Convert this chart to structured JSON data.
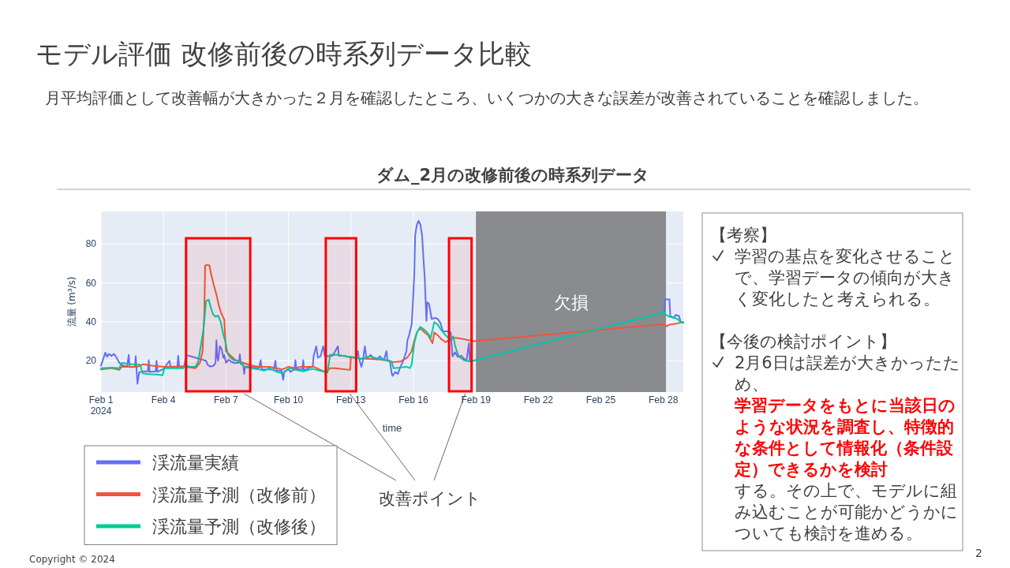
{
  "chart_data": [
    {
      "type": "line",
      "title": "ダム_2月の改修前後の時系列データ",
      "xlabel": "time",
      "ylabel": "流量 (m³/s)",
      "xlim": [
        "2024-02-01T00:00",
        "2024-02-28T23:00"
      ],
      "ylim": [
        3.9,
        96.7
      ],
      "xticks": [
        {
          "value": "2024-02-01",
          "label": "Feb 1\n2024"
        },
        {
          "value": "2024-02-04",
          "label": "Feb 4"
        },
        {
          "value": "2024-02-07",
          "label": "Feb 7"
        },
        {
          "value": "2024-02-10",
          "label": "Feb 10"
        },
        {
          "value": "2024-02-13",
          "label": "Feb 13"
        },
        {
          "value": "2024-02-16",
          "label": "Feb 16"
        },
        {
          "value": "2024-02-19",
          "label": "Feb 19"
        },
        {
          "value": "2024-02-22",
          "label": "Feb 22"
        },
        {
          "value": "2024-02-25",
          "label": "Feb 25"
        },
        {
          "value": "2024-02-28",
          "label": "Feb 28"
        }
      ],
      "yticks": [
        20,
        40,
        60,
        80
      ],
      "grid": true,
      "legend": "bottom left",
      "series": [
        {
          "name": "渓流量実績",
          "color": "#636efa",
          "x": [
            "2024-02-01T00:00",
            "2024-02-01T03:00",
            "2024-02-01T05:00",
            "2024-02-01T07:00",
            "2024-02-01T09:00",
            "2024-02-01T12:00",
            "2024-02-01T15:00",
            "2024-02-01T18:00",
            "2024-02-01T21:00",
            "2024-02-02T00:00",
            "2024-02-02T06:00",
            "2024-02-02T08:00",
            "2024-02-02T09:00",
            "2024-02-02T15:00",
            "2024-02-02T16:00",
            "2024-02-02T18:00",
            "2024-02-02T20:00",
            "2024-02-03T00:00",
            "2024-02-03T06:00",
            "2024-02-03T07:00",
            "2024-02-03T08:00",
            "2024-02-03T15:00",
            "2024-02-03T16:00",
            "2024-02-03T17:00",
            "2024-02-04T00:00",
            "2024-02-04T07:00",
            "2024-02-04T08:00",
            "2024-02-04T16:00",
            "2024-02-04T17:00",
            "2024-02-04T18:00",
            "2024-02-05T00:00",
            "2024-02-05T02:00",
            "2024-02-05T23:00",
            "2024-02-06T01:00",
            "2024-02-06T03:00",
            "2024-02-06T06:00",
            "2024-02-06T10:00",
            "2024-02-06T12:00",
            "2024-02-06T13:00",
            "2024-02-06T14:00",
            "2024-02-06T15:00",
            "2024-02-06T17:00",
            "2024-02-06T19:00",
            "2024-02-06T21:00",
            "2024-02-06T22:00",
            "2024-02-07T00:00",
            "2024-02-07T03:00",
            "2024-02-07T06:00",
            "2024-02-07T10:00",
            "2024-02-07T15:00",
            "2024-02-07T16:00",
            "2024-02-07T17:00",
            "2024-02-07T20:00",
            "2024-02-07T21:00",
            "2024-02-07T22:00",
            "2024-02-08T03:00",
            "2024-02-08T09:00",
            "2024-02-08T14:00",
            "2024-02-08T16:00",
            "2024-02-08T17:00",
            "2024-02-08T23:00",
            "2024-02-09T07:00",
            "2024-02-09T09:00",
            "2024-02-09T10:00",
            "2024-02-09T16:00",
            "2024-02-09T18:00",
            "2024-02-09T19:00",
            "2024-02-10T00:00",
            "2024-02-10T02:00",
            "2024-02-10T07:00",
            "2024-02-10T08:00",
            "2024-02-10T09:00",
            "2024-02-10T16:00",
            "2024-02-10T17:00",
            "2024-02-10T18:00",
            "2024-02-10T23:00",
            "2024-02-11T04:00",
            "2024-02-11T05:00",
            "2024-02-11T08:00",
            "2024-02-11T10:00",
            "2024-02-11T13:00",
            "2024-02-11T16:00",
            "2024-02-11T18:00",
            "2024-02-11T22:00",
            "2024-02-12T03:00",
            "2024-02-12T09:00",
            "2024-02-12T10:00",
            "2024-02-12T18:00",
            "2024-02-13T00:00",
            "2024-02-13T06:00",
            "2024-02-13T08:00",
            "2024-02-13T09:00",
            "2024-02-13T12:00",
            "2024-02-13T14:00",
            "2024-02-13T16:00",
            "2024-02-13T18:00",
            "2024-02-13T23:00",
            "2024-02-14T02:00",
            "2024-02-14T06:00",
            "2024-02-14T09:00",
            "2024-02-14T14:00",
            "2024-02-14T17:00",
            "2024-02-14T18:00",
            "2024-02-14T21:00",
            "2024-02-14T23:00",
            "2024-02-15T00:00",
            "2024-02-15T03:00",
            "2024-02-15T06:00",
            "2024-02-15T09:00",
            "2024-02-15T12:00",
            "2024-02-15T14:00",
            "2024-02-15T16:00",
            "2024-02-15T17:00",
            "2024-02-15T19:00",
            "2024-02-15T20:00",
            "2024-02-15T22:00",
            "2024-02-15T23:00",
            "2024-02-16T01:00",
            "2024-02-16T02:00",
            "2024-02-16T04:00",
            "2024-02-16T06:00",
            "2024-02-16T08:00",
            "2024-02-16T10:00",
            "2024-02-16T11:00",
            "2024-02-16T13:00",
            "2024-02-16T15:00",
            "2024-02-16T16:00",
            "2024-02-16T18:00",
            "2024-02-16T21:00",
            "2024-02-17T01:00",
            "2024-02-17T04:00",
            "2024-02-17T07:00",
            "2024-02-17T10:00",
            "2024-02-17T17:00",
            "2024-02-17T19:00",
            "2024-02-17T21:00",
            "2024-02-18T00:00",
            "2024-02-18T03:00",
            "2024-02-18T07:00",
            "2024-02-18T10:00",
            "2024-02-18T13:00",
            "2024-02-18T16:00",
            "2024-02-18T17:00",
            "2024-02-18T21:00",
            "2024-02-28T01:00",
            "2024-02-28T02:00",
            "2024-02-28T07:00",
            "2024-02-28T08:00",
            "2024-02-28T12:00",
            "2024-02-28T14:00",
            "2024-02-28T18:00",
            "2024-02-28T20:00",
            "2024-02-28T23:00"
          ],
          "values": [
            17.5,
            21.5,
            24.2,
            22.0,
            23.5,
            22.5,
            23.5,
            21.5,
            19.0,
            17.8,
            17.0,
            23.0,
            16.8,
            16.8,
            22.3,
            8.2,
            14.0,
            14.5,
            14.5,
            20.3,
            14.2,
            14.5,
            20.0,
            14.3,
            15.8,
            20.0,
            17.0,
            17.0,
            22.5,
            17.0,
            17.3,
            23.0,
            20.2,
            20.0,
            17.8,
            17.0,
            17.5,
            19.0,
            30.5,
            22.0,
            20.0,
            27.5,
            26.0,
            21.5,
            23.0,
            19.0,
            20.5,
            19.5,
            18.8,
            19.0,
            23.3,
            18.5,
            17.5,
            13.3,
            17.0,
            17.0,
            16.5,
            16.2,
            20.3,
            15.7,
            15.5,
            15.4,
            20.0,
            15.0,
            14.8,
            10.2,
            14.3,
            15.8,
            14.3,
            15.5,
            20.3,
            15.8,
            15.5,
            20.3,
            15.0,
            16.2,
            16.9,
            22.3,
            27.4,
            21.6,
            22.3,
            27.4,
            22.3,
            22.3,
            22.6,
            27.4,
            22.6,
            22.3,
            21.6,
            21.6,
            25.0,
            21.6,
            16.9,
            20.5,
            27.4,
            21.0,
            23.0,
            21.0,
            20.7,
            22.3,
            20.3,
            25.0,
            20.3,
            19.6,
            13.5,
            12.2,
            14.2,
            13.2,
            16.9,
            19.6,
            22.3,
            25.0,
            30.4,
            33.1,
            35.1,
            38.5,
            46.6,
            64.2,
            84.5,
            89.9,
            91.9,
            89.9,
            84.5,
            76.4,
            62.8,
            40.5,
            50.0,
            49.3,
            41.5,
            42.0,
            41.5,
            39.5,
            35.1,
            35.1,
            34.5,
            22.3,
            24.3,
            22.0,
            22.6,
            21.2,
            19.9,
            29.0,
            19.6,
            20.0,
            44.9,
            51.5,
            51.5,
            43.0,
            42.0,
            43.5,
            43.0,
            40.0,
            39.5
          ]
        },
        {
          "name": "渓流量予測（改修前）",
          "color": "#ef553b",
          "x": [
            "2024-02-01T00:00",
            "2024-02-01T12:00",
            "2024-02-01T21:00",
            "2024-02-02T00:00",
            "2024-02-02T18:00",
            "2024-02-03T01:00",
            "2024-02-03T10:00",
            "2024-02-04T01:00",
            "2024-02-04T13:00",
            "2024-02-05T01:00",
            "2024-02-05T13:00",
            "2024-02-05T18:00",
            "2024-02-05T21:00",
            "2024-02-05T23:00",
            "2024-02-06T00:00",
            "2024-02-06T03:00",
            "2024-02-06T05:00",
            "2024-02-06T07:00",
            "2024-02-06T10:00",
            "2024-02-06T13:00",
            "2024-02-06T16:00",
            "2024-02-06T19:00",
            "2024-02-06T22:00",
            "2024-02-07T00:00",
            "2024-02-07T06:00",
            "2024-02-07T11:00",
            "2024-02-07T20:00",
            "2024-02-08T05:00",
            "2024-02-08T14:00",
            "2024-02-09T02:00",
            "2024-02-09T11:00",
            "2024-02-09T17:00",
            "2024-02-10T00:00",
            "2024-02-10T08:00",
            "2024-02-10T14:00",
            "2024-02-10T23:00",
            "2024-02-11T05:00",
            "2024-02-11T12:00",
            "2024-02-11T19:00",
            "2024-02-12T00:00",
            "2024-02-12T06:00",
            "2024-02-12T23:00",
            "2024-02-13T00:00",
            "2024-02-13T09:00",
            "2024-02-13T18:00",
            "2024-02-14T06:00",
            "2024-02-14T15:00",
            "2024-02-15T00:00",
            "2024-02-15T09:00",
            "2024-02-15T17:00",
            "2024-02-15T22:00",
            "2024-02-16T01:00",
            "2024-02-16T04:00",
            "2024-02-16T07:00",
            "2024-02-16T10:00",
            "2024-02-16T13:00",
            "2024-02-16T17:00",
            "2024-02-16T22:00",
            "2024-02-17T00:00",
            "2024-02-17T04:00",
            "2024-02-17T08:00",
            "2024-02-17T13:00",
            "2024-02-17T19:00",
            "2024-02-18T01:00",
            "2024-02-18T10:00",
            "2024-02-18T21:00",
            "2024-02-28T01:00",
            "2024-02-28T03:00",
            "2024-02-28T07:00",
            "2024-02-28T16:00",
            "2024-02-28T23:00"
          ],
          "values": [
            15.5,
            16.2,
            15.3,
            16.9,
            16.9,
            18.2,
            17.5,
            16.9,
            16.9,
            16.9,
            16.2,
            18.9,
            25.0,
            43.9,
            68.9,
            69.3,
            68.9,
            64.2,
            58.8,
            54.0,
            48.0,
            43.9,
            41.2,
            25.0,
            22.3,
            20.3,
            18.9,
            17.6,
            16.9,
            16.9,
            16.2,
            15.5,
            16.9,
            16.2,
            16.9,
            16.9,
            16.9,
            15.5,
            14.2,
            16.2,
            16.2,
            15.3,
            22.0,
            21.2,
            21.0,
            20.7,
            20.3,
            19.3,
            19.6,
            21.6,
            25.0,
            30.4,
            34.5,
            36.5,
            35.8,
            34.5,
            33.1,
            29.0,
            34.5,
            33.1,
            31.1,
            29.6,
            31.1,
            31.8,
            31.1,
            30.0,
            38.8,
            37.6,
            38.5,
            39.2,
            39.9
          ]
        },
        {
          "name": "渓流量予測（改修後）",
          "color": "#00cc96",
          "x": [
            "2024-02-01T00:00",
            "2024-02-01T12:00",
            "2024-02-01T21:00",
            "2024-02-02T00:00",
            "2024-02-02T12:00",
            "2024-02-02T21:00",
            "2024-02-03T00:00",
            "2024-02-03T07:00",
            "2024-02-03T19:00",
            "2024-02-03T23:00",
            "2024-02-04T01:00",
            "2024-02-04T13:00",
            "2024-02-04T23:00",
            "2024-02-05T01:00",
            "2024-02-05T07:00",
            "2024-02-05T13:00",
            "2024-02-05T16:00",
            "2024-02-05T19:00",
            "2024-02-05T22:00",
            "2024-02-06T00:00",
            "2024-02-06T01:00",
            "2024-02-06T04:00",
            "2024-02-06T07:00",
            "2024-02-06T09:00",
            "2024-02-06T12:00",
            "2024-02-06T15:00",
            "2024-02-06T18:00",
            "2024-02-06T21:00",
            "2024-02-06T23:00",
            "2024-02-07T02:00",
            "2024-02-07T05:00",
            "2024-02-07T09:00",
            "2024-02-07T17:00",
            "2024-02-07T21:00",
            "2024-02-08T05:00",
            "2024-02-08T14:00",
            "2024-02-08T20:00",
            "2024-02-09T02:00",
            "2024-02-09T11:00",
            "2024-02-09T17:00",
            "2024-02-10T02:00",
            "2024-02-10T08:00",
            "2024-02-10T17:00",
            "2024-02-10T23:00",
            "2024-02-11T04:00",
            "2024-02-11T12:00",
            "2024-02-11T21:00",
            "2024-02-12T00:00",
            "2024-02-12T09:00",
            "2024-02-12T18:00",
            "2024-02-13T03:00",
            "2024-02-13T12:00",
            "2024-02-13T21:00",
            "2024-02-14T09:00",
            "2024-02-14T18:00",
            "2024-02-14T23:00",
            "2024-02-15T01:00",
            "2024-02-15T09:00",
            "2024-02-15T16:00",
            "2024-02-15T20:00",
            "2024-02-15T22:00",
            "2024-02-16T01:00",
            "2024-02-16T04:00",
            "2024-02-16T08:00",
            "2024-02-16T11:00",
            "2024-02-16T16:00",
            "2024-02-16T20:00",
            "2024-02-17T00:00",
            "2024-02-17T04:00",
            "2024-02-17T08:00",
            "2024-02-17T13:00",
            "2024-02-17T18:00",
            "2024-02-17T22:00",
            "2024-02-18T00:00",
            "2024-02-18T04:00",
            "2024-02-18T10:00",
            "2024-02-18T18:00",
            "2024-02-18T21:00",
            "2024-02-28T01:00",
            "2024-02-28T02:00",
            "2024-02-28T07:00",
            "2024-02-28T13:00",
            "2024-02-28T17:00",
            "2024-02-28T20:00",
            "2024-02-28T23:00"
          ],
          "values": [
            16.2,
            16.5,
            16.2,
            18.9,
            18.2,
            18.0,
            13.5,
            13.1,
            12.8,
            12.5,
            16.2,
            16.2,
            16.2,
            17.6,
            16.9,
            16.9,
            19.6,
            27.7,
            35.8,
            45.3,
            50.7,
            51.4,
            46.6,
            43.9,
            42.6,
            43.2,
            39.9,
            33.1,
            30.4,
            23.6,
            21.6,
            20.3,
            19.6,
            16.9,
            16.2,
            15.5,
            14.9,
            16.2,
            14.2,
            13.5,
            16.2,
            15.3,
            14.5,
            15.3,
            15.8,
            14.9,
            13.9,
            23.0,
            23.0,
            22.3,
            21.6,
            20.9,
            22.3,
            20.9,
            20.3,
            19.6,
            16.2,
            16.5,
            16.9,
            16.2,
            18.2,
            29.0,
            34.5,
            37.4,
            36.5,
            34.5,
            31.8,
            39.9,
            38.5,
            35.8,
            33.1,
            31.1,
            32.4,
            27.7,
            22.3,
            20.3,
            19.6,
            20.0,
            44.9,
            43.9,
            42.6,
            42.0,
            41.2,
            39.9,
            39.6
          ]
        }
      ],
      "bands": [
        {
          "axis": "x",
          "from": "2024-02-19T00:00",
          "to": "2024-02-28T03:00",
          "label": "欠損",
          "color": "#898b8f"
        },
        {
          "axis": "x",
          "from": "2024-02-05T02:00",
          "to": "2024-02-08T04:00",
          "color": "#ff0000"
        },
        {
          "axis": "x",
          "from": "2024-02-11T19:00",
          "to": "2024-02-13T06:00",
          "color": "#ff0000"
        },
        {
          "axis": "x",
          "from": "2024-02-17T17:00",
          "to": "2024-02-18T19:00",
          "color": "#ff0000"
        }
      ],
      "annotations": [
        "モデル評価 改修前後の時系列データ比較",
        "月平均評価として改善幅が大きかった２月を確認したところ、いくつかの大きな誤差が改善されていることを確認しました。",
        "改善ポイント",
        "Copyright © 2024",
        "2"
      ]
    },
    {
      "type": "other",
      "annotations": [
        "【考察】",
        "学習の基点を変化させることで、学習データの傾向が大きく変化したと考えられる。",
        "【今後の検討ポイント】",
        "2月6日は誤差が大きかったため、",
        "学習データをもとに当該日のような状況を調査し、特徴的な条件として情報化（条件設定）できるかを検討",
        "する。その上で、モデルに組み込むことが可能かどうかについても検討を進める。"
      ]
    }
  ]
}
